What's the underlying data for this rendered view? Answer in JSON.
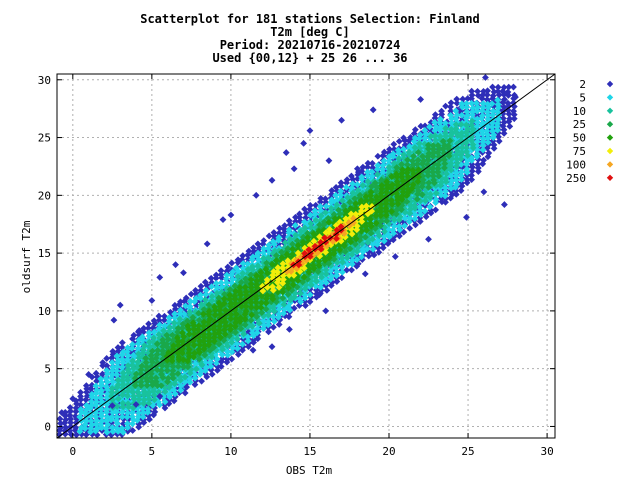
{
  "chart_data": {
    "type": "scatter",
    "title_lines": [
      "Scatterplot for  181 stations Selection: Finland",
      "T2m [deg C]",
      "Period: 20210716-20210724",
      "Used {00,12} + 25 26 ... 36"
    ],
    "xlabel": "OBS T2m",
    "ylabel": "oldsurf T2m",
    "xlim": [
      -1,
      30.5
    ],
    "ylim": [
      -1,
      30.5
    ],
    "x_ticks": [
      0,
      5,
      10,
      15,
      20,
      25,
      30
    ],
    "y_ticks": [
      0,
      5,
      10,
      15,
      20,
      25,
      30
    ],
    "grid": true,
    "reference_line": "y = x",
    "legend_placement": "right",
    "density_classes": [
      {
        "label": "2",
        "color": "#2e2eb8"
      },
      {
        "label": "5",
        "color": "#1fd5e8"
      },
      {
        "label": "10",
        "color": "#19c29d"
      },
      {
        "label": "25",
        "color": "#1aa84a"
      },
      {
        "label": "50",
        "color": "#22a10e"
      },
      {
        "label": "75",
        "color": "#f2ee0a"
      },
      {
        "label": "100",
        "color": "#f5a623"
      },
      {
        "label": "250",
        "color": "#e01010"
      }
    ],
    "regions": [
      {
        "class": 0,
        "along": [
          -0.8,
          28.0
        ],
        "halfwidth": 4.2
      },
      {
        "class": 1,
        "along": [
          0.5,
          27.0
        ],
        "halfwidth": 3.6
      },
      {
        "class": 2,
        "along": [
          2.5,
          25.5
        ],
        "halfwidth": 2.8
      },
      {
        "class": 3,
        "along": [
          4.0,
          24.0
        ],
        "halfwidth": 2.1
      },
      {
        "class": 4,
        "along": [
          6.0,
          22.0
        ],
        "halfwidth": 1.6
      },
      {
        "class": 5,
        "along": [
          12.0,
          19.0
        ],
        "halfwidth": 0.9
      },
      {
        "class": 6,
        "along": [
          13.5,
          18.0
        ],
        "halfwidth": 0.45
      },
      {
        "class": 7,
        "along": [
          14.0,
          17.2
        ],
        "halfwidth": 0.35
      }
    ],
    "outliers": [
      [
        -0.7,
        1.2
      ],
      [
        0.0,
        2.4
      ],
      [
        1.0,
        4.5
      ],
      [
        2.6,
        9.2
      ],
      [
        3.0,
        10.5
      ],
      [
        4.2,
        8.3
      ],
      [
        5.0,
        10.9
      ],
      [
        5.5,
        12.9
      ],
      [
        6.5,
        14.0
      ],
      [
        7.0,
        13.3
      ],
      [
        8.5,
        15.8
      ],
      [
        9.5,
        17.9
      ],
      [
        10.0,
        18.3
      ],
      [
        11.6,
        20.0
      ],
      [
        12.6,
        21.3
      ],
      [
        13.5,
        23.7
      ],
      [
        14.6,
        24.5
      ],
      [
        15.0,
        25.6
      ],
      [
        17.0,
        26.5
      ],
      [
        19.0,
        27.4
      ],
      [
        22.0,
        28.3
      ],
      [
        26.1,
        30.2
      ],
      [
        28.0,
        28.5
      ],
      [
        27.3,
        19.2
      ],
      [
        26.0,
        20.3
      ],
      [
        24.9,
        18.1
      ],
      [
        22.5,
        16.2
      ],
      [
        20.4,
        14.7
      ],
      [
        18.5,
        13.2
      ],
      [
        16.0,
        10.0
      ],
      [
        15.6,
        11.4
      ],
      [
        13.7,
        8.4
      ],
      [
        12.6,
        6.9
      ],
      [
        11.4,
        6.6
      ],
      [
        9.4,
        5.6
      ],
      [
        7.2,
        3.4
      ],
      [
        5.5,
        2.6
      ],
      [
        4.0,
        1.9
      ],
      [
        2.5,
        1.8
      ],
      [
        16.2,
        23.0
      ],
      [
        18.0,
        22.3
      ],
      [
        14.0,
        22.3
      ]
    ]
  }
}
